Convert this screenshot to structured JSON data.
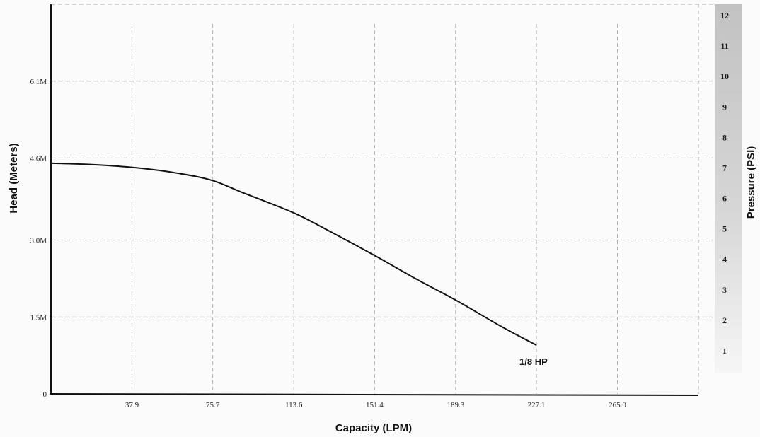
{
  "chart_data": {
    "type": "line",
    "xlabel": "Capacity (LPM)",
    "ylabel": "Head (Meters)",
    "y2label": "Pressure (PSI)",
    "xlim": [
      0,
      302.9
    ],
    "ylim": [
      0,
      7.6
    ],
    "x_ticks": [
      37.9,
      75.7,
      113.6,
      151.4,
      189.3,
      227.1,
      265.0
    ],
    "x_tick_labels": [
      "37.9",
      "75.7",
      "113.6",
      "151.4",
      "189.3",
      "227.1",
      "265.0"
    ],
    "y_ticks": [
      0,
      1.5,
      3.0,
      4.6,
      6.1
    ],
    "y_tick_labels": [
      "0",
      "1.5M",
      "3.0M",
      "4.6M",
      "6.1M"
    ],
    "y2_ticks": [
      1,
      2,
      3,
      4,
      5,
      6,
      7,
      8,
      9,
      10,
      11,
      12
    ],
    "grid": true,
    "series": [
      {
        "name": "1/8 HP",
        "x": [
          0,
          20,
          40,
          60,
          75.7,
          90,
          113.6,
          130,
          151.4,
          170,
          189.3,
          210,
          227.1
        ],
        "y": [
          4.5,
          4.47,
          4.41,
          4.3,
          4.16,
          3.92,
          3.53,
          3.18,
          2.7,
          2.26,
          1.83,
          1.33,
          0.95
        ]
      }
    ]
  }
}
